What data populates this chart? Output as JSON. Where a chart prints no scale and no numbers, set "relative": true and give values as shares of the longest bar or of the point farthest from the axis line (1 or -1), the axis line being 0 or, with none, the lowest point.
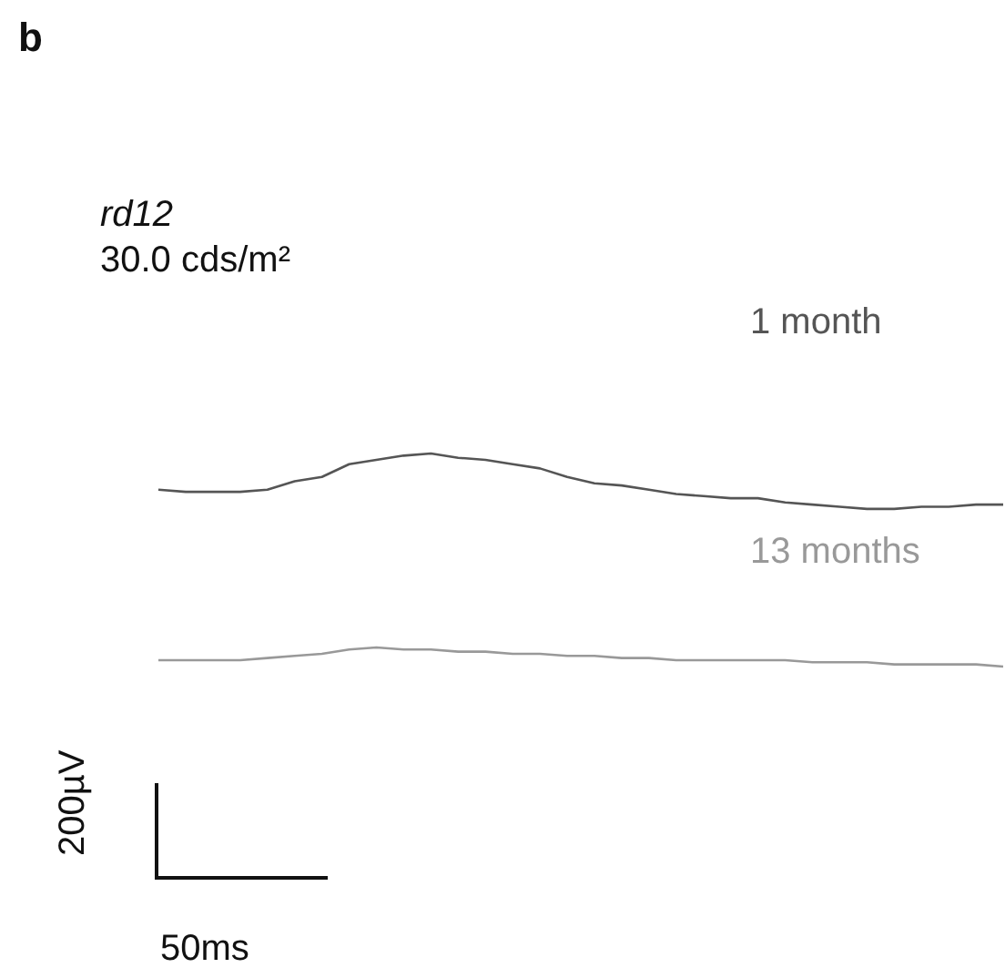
{
  "chart_data": {
    "type": "line",
    "title": "b",
    "relative": true,
    "legend": false,
    "marker": "none",
    "line_style": "solid",
    "annotations": [
      "rd12",
      "30.0 cds/m²",
      "200µV",
      "50ms"
    ],
    "categories": [
      null,
      null,
      null,
      null,
      null,
      null,
      null,
      null,
      null,
      null,
      null,
      null,
      null,
      null,
      null,
      null,
      null,
      null,
      null,
      null,
      null,
      null,
      null,
      null,
      null,
      null,
      null,
      null,
      null,
      null,
      null,
      null
    ],
    "series": [
      {
        "name": "1 month",
        "color": "#555555",
        "values": [
          0.83,
          0.82,
          0.82,
          0.82,
          0.83,
          0.87,
          0.89,
          0.95,
          0.97,
          0.99,
          1,
          0.98,
          0.97,
          0.95,
          0.93,
          0.89,
          0.86,
          0.85,
          0.83,
          0.81,
          0.8,
          0.79,
          0.79,
          0.77,
          0.76,
          0.75,
          0.74,
          0.74,
          0.75,
          0.75,
          0.76,
          0.76
        ]
      },
      {
        "name": "13 months",
        "color": "#999999",
        "values": [
          0.03,
          0.03,
          0.03,
          0.03,
          0.04,
          0.05,
          0.06,
          0.08,
          0.09,
          0.08,
          0.08,
          0.07,
          0.07,
          0.06,
          0.06,
          0.05,
          0.05,
          0.04,
          0.04,
          0.03,
          0.03,
          0.03,
          0.03,
          0.03,
          0.02,
          0.02,
          0.02,
          0.01,
          0.01,
          0.01,
          0.01,
          0
        ]
      }
    ]
  }
}
